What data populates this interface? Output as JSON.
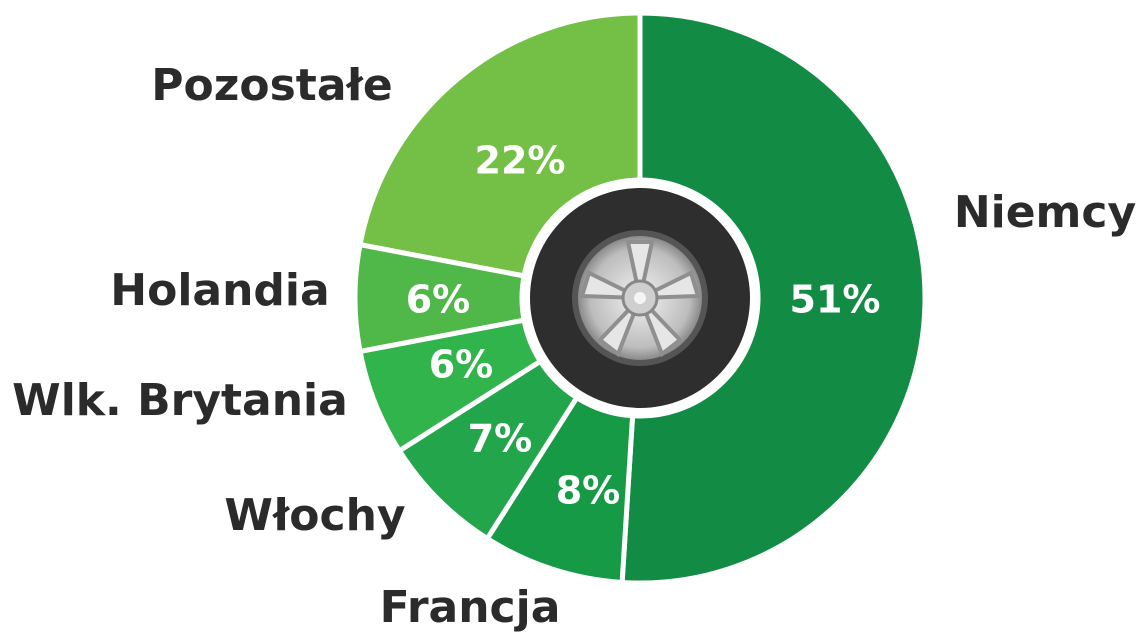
{
  "chart_data": {
    "type": "donut",
    "categories": [
      "Niemcy",
      "Francja",
      "Włochy",
      "Wlk. Brytania",
      "Holandia",
      "Pozostałe"
    ],
    "values": [
      51,
      8,
      7,
      6,
      6,
      22
    ],
    "value_labels": [
      "51%",
      "8%",
      "7%",
      "6%",
      "6%",
      "22%"
    ],
    "colors": [
      "#128c44",
      "#169a46",
      "#23a64b",
      "#31b44c",
      "#4fb848",
      "#74bf45"
    ]
  }
}
